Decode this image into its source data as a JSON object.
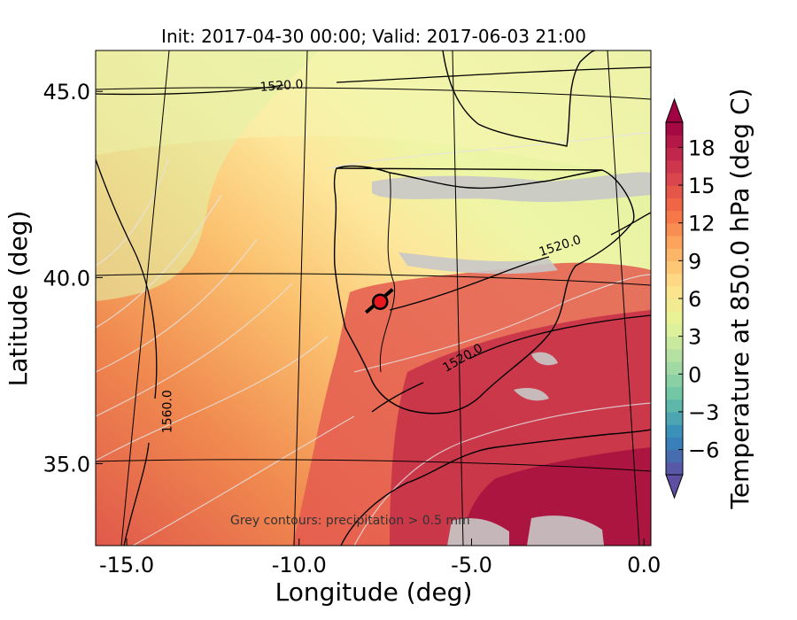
{
  "chart_data": {
    "type": "heatmap",
    "title": "Init: 2017-04-30 00:00; Valid: 2017-06-03 21:00",
    "xlabel": "Longitude (deg)",
    "ylabel": "Latitude (deg)",
    "xlim": [
      -15.9,
      0.2
    ],
    "ylim": [
      32.8,
      46.1
    ],
    "x_ticks": [
      {
        "value": -15,
        "label": "-15.0"
      },
      {
        "value": -10,
        "label": "-10.0"
      },
      {
        "value": -5,
        "label": "-5.0"
      },
      {
        "value": 0,
        "label": "0.0"
      }
    ],
    "y_ticks": [
      {
        "value": 35,
        "label": "35.0"
      },
      {
        "value": 40,
        "label": "40.0"
      },
      {
        "value": 45,
        "label": "45.0"
      }
    ],
    "colorbar": {
      "label": "Temperature at 850.0 hPa (deg C)",
      "range": [
        -8,
        20
      ],
      "step": 1,
      "extend": "both",
      "ticks": [
        {
          "value": 18,
          "label": "18"
        },
        {
          "value": 15,
          "label": "15"
        },
        {
          "value": 12,
          "label": "12"
        },
        {
          "value": 9,
          "label": "9"
        },
        {
          "value": 6,
          "label": "6"
        },
        {
          "value": 3,
          "label": "3"
        },
        {
          "value": 0,
          "label": "0"
        },
        {
          "value": -3,
          "label": "−3"
        },
        {
          "value": -6,
          "label": "−6"
        }
      ]
    },
    "height_contours": [
      {
        "label": "1520.0",
        "lon": -10.5,
        "lat": 45.05,
        "angle": -4
      },
      {
        "label": "1520.0",
        "lon": -2.4,
        "lat": 40.75,
        "angle": -18
      },
      {
        "label": "1520.0",
        "lon": -5.2,
        "lat": 37.75,
        "angle": -30
      },
      {
        "label": "1560.0",
        "lon": -13.7,
        "lat": 36.4,
        "angle": -90
      }
    ],
    "marker": {
      "lon": -7.65,
      "lat": 39.35,
      "color": "#e8191e"
    },
    "annotation": "Grey contours: precipitation > 0.5 mm"
  }
}
